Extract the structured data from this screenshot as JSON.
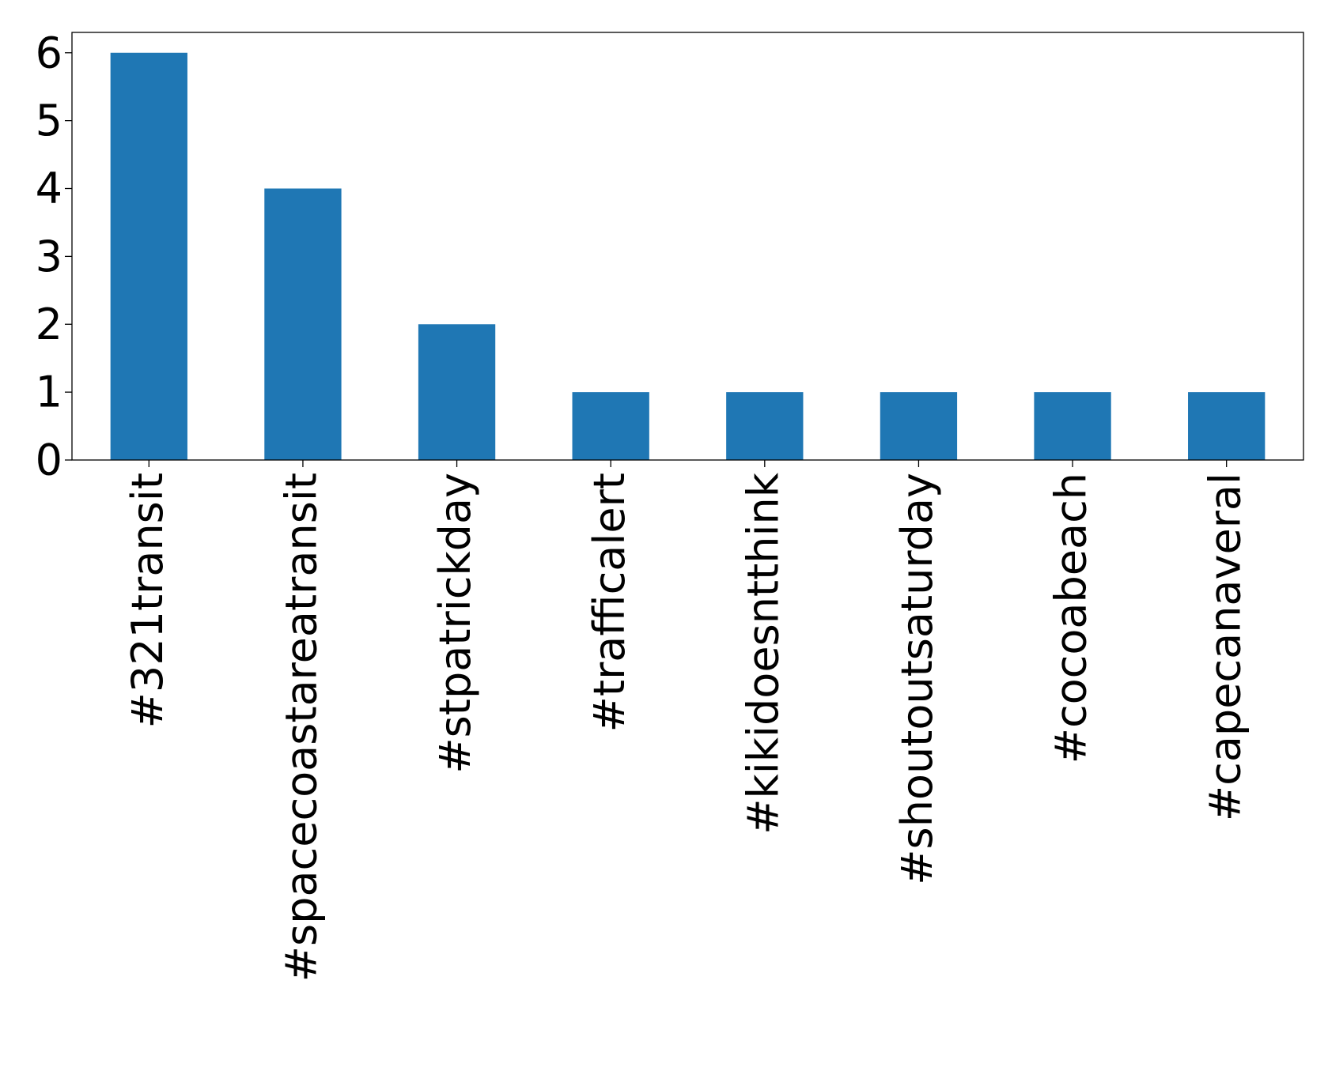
{
  "chart_data": {
    "type": "bar",
    "title": "",
    "xlabel": "",
    "ylabel": "",
    "categories": [
      "#321transit",
      "#spacecoastareatransit",
      "#stpatrickday",
      "#trafficalert",
      "#kikidoesntthink",
      "#shoutoutsaturday",
      "#cocoabeach",
      "#capecanaveral"
    ],
    "values": [
      6,
      4,
      2,
      1,
      1,
      1,
      1,
      1
    ],
    "ylim": [
      0,
      6.3
    ],
    "yticks": [
      0,
      1,
      2,
      3,
      4,
      5,
      6
    ],
    "bar_color": "#1f77b4",
    "grid": false,
    "legend": "none"
  }
}
